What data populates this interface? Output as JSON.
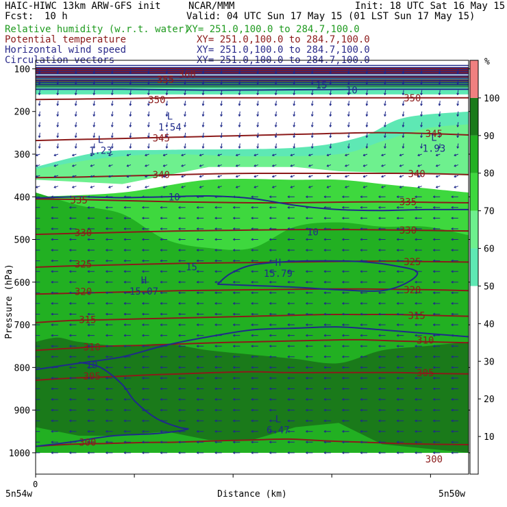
{
  "header": {
    "title_left": "HAIC-HIWC 13km ARW-GFS init",
    "center": "NCAR/MMM",
    "init": "Init: 18 UTC Sat 16 May 15",
    "fcst_label": "Fcst:",
    "fcst_value": "10 h",
    "valid": "Valid: 04 UTC Sun 17 May 15 (01 LST Sun 17 May 15)"
  },
  "fields": [
    {
      "label": "Relative humidity (w.r.t. water)",
      "xy": "XY= 251.0,100.0 to 284.7,100.0",
      "color": "#1e9a1e"
    },
    {
      "label": "Potential temperature",
      "xy": "XY= 251.0,100.0 to 284.7,100.0",
      "color": "#8b1a1a"
    },
    {
      "label": "Horizontal wind speed",
      "xy": "XY= 251.0,100.0 to 284.7,100.0",
      "color": "#2a2a8a"
    },
    {
      "label": "Circulation vectors",
      "xy": "XY= 251.0,100.0 to 284.7,100.0",
      "color": "#2a2a8a"
    }
  ],
  "chart_data": {
    "type": "heatmap",
    "title": "",
    "xlabel": "Distance (km)",
    "ylabel": "Pressure (hPa)",
    "x_tick_labels": [
      "0"
    ],
    "x_end_labels": [
      "5n54w",
      "5n50w"
    ],
    "y_ticks": [
      100,
      200,
      300,
      400,
      500,
      600,
      700,
      800,
      900,
      1000
    ],
    "colorbar": {
      "unit": "%",
      "ticks": [
        10,
        20,
        30,
        40,
        50,
        60,
        70,
        80,
        90,
        100
      ],
      "bands": [
        {
          "from": 0,
          "to": 50,
          "color": "#ffffff"
        },
        {
          "from": 50,
          "to": 60,
          "color": "#5ee8b4"
        },
        {
          "from": 60,
          "to": 70,
          "color": "#6ef08e"
        },
        {
          "from": 70,
          "to": 80,
          "color": "#3ed83e"
        },
        {
          "from": 80,
          "to": 90,
          "color": "#22b022"
        },
        {
          "from": 90,
          "to": 100,
          "color": "#1a7a1a"
        },
        {
          "from": 100,
          "to": 110,
          "color": "#f08080"
        }
      ]
    },
    "rh_layers": [
      {
        "name": "RH>=90",
        "color": "#1a7a1a",
        "top": [
          [
            0,
            740
          ],
          [
            5,
            730
          ],
          [
            10,
            740
          ],
          [
            20,
            750
          ],
          [
            30,
            745
          ],
          [
            40,
            760
          ],
          [
            50,
            770
          ],
          [
            60,
            780
          ],
          [
            70,
            790
          ],
          [
            80,
            760
          ],
          [
            90,
            750
          ],
          [
            100,
            740
          ]
        ],
        "bottom": [
          [
            0,
            940
          ],
          [
            10,
            960
          ],
          [
            20,
            960
          ],
          [
            30,
            950
          ],
          [
            40,
            970
          ],
          [
            50,
            970
          ],
          [
            60,
            940
          ],
          [
            70,
            930
          ],
          [
            80,
            980
          ],
          [
            90,
            990
          ],
          [
            100,
            1000
          ]
        ]
      },
      {
        "name": "RH>=80",
        "color": "#22b022",
        "top": [
          [
            0,
            390
          ],
          [
            10,
            420
          ],
          [
            20,
            440
          ],
          [
            30,
            500
          ],
          [
            40,
            520
          ],
          [
            50,
            520
          ],
          [
            60,
            470
          ],
          [
            70,
            460
          ],
          [
            80,
            470
          ],
          [
            90,
            470
          ],
          [
            100,
            490
          ]
        ],
        "bottom": [
          [
            0,
            1000
          ],
          [
            50,
            1000
          ],
          [
            100,
            1000
          ]
        ]
      },
      {
        "name": "RH>=70",
        "color": "#3ed83e",
        "top": [
          [
            0,
            400
          ],
          [
            20,
            390
          ],
          [
            40,
            360
          ],
          [
            60,
            360
          ],
          [
            70,
            360
          ],
          [
            80,
            370
          ],
          [
            90,
            380
          ],
          [
            100,
            390
          ]
        ],
        "bottom": [
          [
            0,
            1000
          ],
          [
            100,
            1000
          ]
        ]
      },
      {
        "name": "RH>=60",
        "color": "#6ef08e",
        "top": [
          [
            0,
            335
          ],
          [
            15,
            310
          ],
          [
            30,
            300
          ],
          [
            50,
            305
          ],
          [
            70,
            300
          ],
          [
            80,
            270
          ],
          [
            90,
            240
          ],
          [
            100,
            230
          ]
        ],
        "bottom": [
          [
            0,
            360
          ],
          [
            20,
            370
          ],
          [
            40,
            330
          ],
          [
            60,
            330
          ],
          [
            70,
            340
          ],
          [
            100,
            350
          ]
        ]
      },
      {
        "name": "RH>=50",
        "color": "#5ee8b4",
        "top": [
          [
            0,
            330
          ],
          [
            15,
            295
          ],
          [
            30,
            290
          ],
          [
            60,
            285
          ],
          [
            75,
            260
          ],
          [
            85,
            215
          ],
          [
            100,
            200
          ]
        ],
        "bottom": [
          [
            0,
            345
          ],
          [
            30,
            320
          ],
          [
            60,
            310
          ],
          [
            80,
            300
          ],
          [
            100,
            300
          ]
        ]
      }
    ],
    "rh_upper_band": {
      "from_hPa": 115,
      "to_hPa": 160
    },
    "theta_contours": [
      {
        "value": 300,
        "p": [
          985,
          980,
          978,
          976,
          975,
          972,
          970,
          968,
          972,
          975,
          978,
          980,
          981
        ]
      },
      {
        "value": 305,
        "p": [
          830,
          825,
          822,
          818,
          815,
          812,
          810,
          812,
          812,
          812,
          812,
          814,
          815
        ]
      },
      {
        "value": 310,
        "p": [
          760,
          755,
          750,
          748,
          745,
          742,
          740,
          738,
          736,
          735,
          738,
          740,
          742
        ]
      },
      {
        "value": 315,
        "p": [
          695,
          690,
          688,
          686,
          684,
          682,
          680,
          678,
          676,
          676,
          676,
          678,
          680
        ]
      },
      {
        "value": 320,
        "p": [
          628,
          626,
          624,
          622,
          620,
          619,
          618,
          617,
          616,
          616,
          617,
          618,
          620
        ]
      },
      {
        "value": 325,
        "p": [
          565,
          562,
          560,
          558,
          556,
          555,
          554,
          553,
          552,
          551,
          551,
          552,
          553
        ]
      },
      {
        "value": 330,
        "p": [
          488,
          486,
          484,
          482,
          480,
          479,
          478,
          477,
          477,
          477,
          478,
          479,
          480
        ]
      },
      {
        "value": 335,
        "p": [
          405,
          406,
          408,
          410,
          412,
          413,
          414,
          414,
          413,
          412,
          412,
          413,
          414
        ]
      },
      {
        "value": 340,
        "p": [
          355,
          354,
          352,
          350,
          348,
          346,
          345,
          345,
          345,
          345,
          345,
          346,
          348
        ]
      },
      {
        "value": 345,
        "p": [
          268,
          266,
          264,
          262,
          260,
          258,
          256,
          254,
          252,
          250,
          250,
          252,
          255
        ]
      },
      {
        "value": 350,
        "p": [
          172,
          171,
          170,
          169,
          168,
          168,
          168,
          168,
          168,
          168,
          168,
          168,
          168
        ]
      },
      {
        "value": 355,
        "p": [
          127,
          127,
          127,
          127,
          127,
          127,
          127,
          127,
          127,
          127,
          127,
          127,
          127
        ]
      },
      {
        "value": 360,
        "p": [
          118,
          118,
          118,
          118,
          118,
          118,
          118,
          118,
          118,
          118,
          118,
          118,
          118
        ]
      },
      {
        "value": 365,
        "p": [
          110,
          110,
          110,
          110,
          110,
          110,
          110,
          110,
          110,
          110,
          110,
          110,
          110
        ]
      },
      {
        "value": 370,
        "p": [
          104,
          104,
          104,
          104,
          104,
          104,
          104,
          104,
          104,
          104,
          104,
          104,
          104
        ]
      },
      {
        "value": 375,
        "p": [
          99,
          99,
          99,
          99,
          99,
          99,
          99,
          99,
          99,
          99,
          99,
          99,
          99
        ]
      }
    ],
    "theta_labels": [
      {
        "text": "300",
        "x": 12,
        "p": 975
      },
      {
        "text": "300",
        "x": 92,
        "p": 1015
      },
      {
        "text": "305",
        "x": 13,
        "p": 820
      },
      {
        "text": "305",
        "x": 90,
        "p": 812
      },
      {
        "text": "310",
        "x": 13,
        "p": 752
      },
      {
        "text": "310",
        "x": 90,
        "p": 736
      },
      {
        "text": "315",
        "x": 12,
        "p": 688
      },
      {
        "text": "315",
        "x": 88,
        "p": 678
      },
      {
        "text": "320",
        "x": 11,
        "p": 622
      },
      {
        "text": "320",
        "x": 87,
        "p": 618
      },
      {
        "text": "325",
        "x": 11,
        "p": 558
      },
      {
        "text": "325",
        "x": 87,
        "p": 552
      },
      {
        "text": "330",
        "x": 11,
        "p": 484
      },
      {
        "text": "330",
        "x": 86,
        "p": 478
      },
      {
        "text": "335",
        "x": 10,
        "p": 408
      },
      {
        "text": "335",
        "x": 86,
        "p": 412
      },
      {
        "text": "340",
        "x": 29,
        "p": 348
      },
      {
        "text": "340",
        "x": 88,
        "p": 346
      },
      {
        "text": "345",
        "x": 29,
        "p": 262
      },
      {
        "text": "345",
        "x": 92,
        "p": 252
      },
      {
        "text": "350",
        "x": 28,
        "p": 172
      },
      {
        "text": "350",
        "x": 87,
        "p": 168
      },
      {
        "text": "355",
        "x": 30,
        "p": 125
      },
      {
        "text": "360",
        "x": 35,
        "p": 113
      }
    ],
    "wind_contours": [
      {
        "label": "10",
        "points": [
          [
            0,
            805
          ],
          [
            10,
            790
          ],
          [
            20,
            775
          ],
          [
            30,
            748
          ],
          [
            40,
            728
          ],
          [
            50,
            712
          ],
          [
            60,
            708
          ],
          [
            70,
            705
          ],
          [
            80,
            712
          ],
          [
            90,
            720
          ],
          [
            100,
            728
          ]
        ]
      },
      {
        "label": "10",
        "points": [
          [
            0,
            403
          ],
          [
            10,
            400
          ],
          [
            20,
            402
          ],
          [
            30,
            400
          ],
          [
            40,
            398
          ],
          [
            50,
            404
          ],
          [
            60,
            420
          ],
          [
            70,
            430
          ],
          [
            80,
            432
          ],
          [
            90,
            430
          ],
          [
            100,
            430
          ]
        ]
      },
      {
        "label": "10",
        "points": [
          [
            0,
            148
          ],
          [
            20,
            148
          ],
          [
            40,
            150
          ],
          [
            60,
            149
          ],
          [
            80,
            148
          ],
          [
            100,
            148
          ]
        ]
      },
      {
        "label": "15",
        "points": [
          [
            42,
            605
          ],
          [
            45,
            580
          ],
          [
            50,
            560
          ],
          [
            58,
            552
          ],
          [
            66,
            550
          ],
          [
            75,
            552
          ],
          [
            82,
            560
          ],
          [
            88,
            575
          ],
          [
            86,
            600
          ],
          [
            80,
            620
          ],
          [
            70,
            618
          ],
          [
            60,
            612
          ],
          [
            50,
            608
          ],
          [
            42,
            605
          ]
        ]
      },
      {
        "label": "10",
        "points": [
          [
            10,
            788
          ],
          [
            15,
            800
          ],
          [
            20,
            840
          ],
          [
            23,
            880
          ],
          [
            28,
            920
          ],
          [
            33,
            940
          ],
          [
            35,
            945
          ],
          [
            28,
            955
          ],
          [
            18,
            960
          ],
          [
            8,
            975
          ],
          [
            0,
            985
          ]
        ]
      }
    ],
    "wind_labels": [
      {
        "text": "10",
        "x": 64,
        "p": 482
      },
      {
        "text": "10",
        "x": 32,
        "p": 400
      },
      {
        "text": "10",
        "x": 13,
        "p": 794
      },
      {
        "text": "15",
        "x": 36,
        "p": 564
      },
      {
        "text": "10",
        "x": 73,
        "p": 150
      },
      {
        "text": "15",
        "x": 66,
        "p": 138
      }
    ],
    "extrema": [
      {
        "kind": "L",
        "value": "1.23",
        "x": 15,
        "p": 280
      },
      {
        "kind": "L",
        "value": "1.54",
        "x": 31,
        "p": 225
      },
      {
        "kind": "L",
        "value": "1.93",
        "x": 92,
        "p": 275
      },
      {
        "kind": "H",
        "value": "15.07",
        "x": 25,
        "p": 610
      },
      {
        "kind": "H",
        "value": "15.79",
        "x": 56,
        "p": 568
      },
      {
        "kind": "L",
        "value": "6.47",
        "x": 56,
        "p": 935
      }
    ],
    "vector_note": "horizontal circulation vectors: easterly (leftward) throughout, downward in upper levels"
  }
}
